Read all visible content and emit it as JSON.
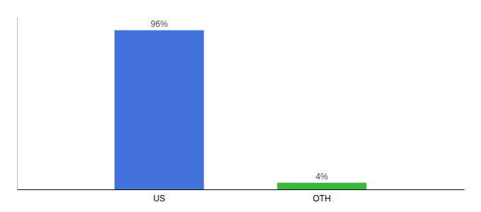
{
  "chart_data": {
    "type": "bar",
    "categories": [
      "US",
      "OTH"
    ],
    "values": [
      96,
      4
    ],
    "colors": [
      "#4472db",
      "#3cb53c"
    ],
    "data_labels": true,
    "value_labels": [
      "96%",
      "4%"
    ],
    "ylim": [
      0,
      104
    ],
    "tick_labels": "x"
  }
}
